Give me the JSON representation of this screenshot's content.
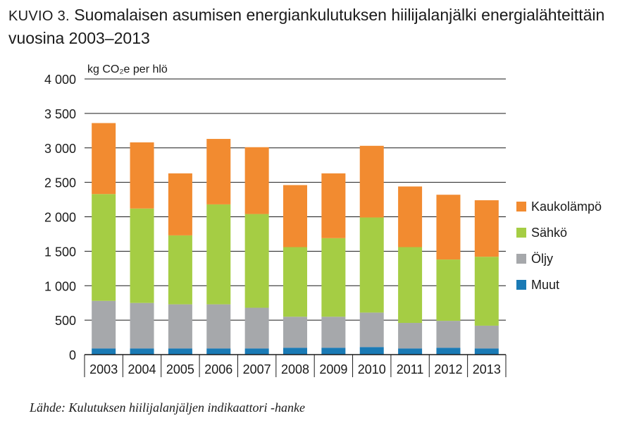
{
  "title": {
    "prefix": "KUVIO 3.",
    "text": "Suomalaisen asumisen energiankulutuksen hiilijalanjälki energialähteittäin vuosina 2003–2013"
  },
  "source": "Lähde: Kulutuksen hiilijalanjäljen indikaattori -hanke",
  "chart_data": {
    "type": "bar",
    "stacked": true,
    "ylabel": "kg CO₂e per hlö",
    "ylim": [
      0,
      4000
    ],
    "yticks": [
      0,
      500,
      1000,
      1500,
      2000,
      2500,
      3000,
      3500,
      4000
    ],
    "ytick_labels": [
      "0",
      "500",
      "1 000",
      "1 500",
      "2 000",
      "2 500",
      "3 000",
      "3 500",
      "4 000"
    ],
    "grid": true,
    "legend_position": "right",
    "categories": [
      "2003",
      "2004",
      "2005",
      "2006",
      "2007",
      "2008",
      "2009",
      "2010",
      "2011",
      "2012",
      "2013"
    ],
    "series": [
      {
        "name": "Muut",
        "color": "#1a7ab5",
        "values": [
          90,
          90,
          90,
          90,
          90,
          100,
          100,
          110,
          90,
          100,
          90
        ]
      },
      {
        "name": "Öljy",
        "color": "#a6a8ab",
        "values": [
          690,
          660,
          640,
          640,
          590,
          450,
          450,
          500,
          370,
          390,
          330
        ]
      },
      {
        "name": "Sähkö",
        "color": "#a5cd44",
        "values": [
          1550,
          1370,
          1000,
          1450,
          1360,
          1010,
          1140,
          1380,
          1100,
          890,
          1000
        ]
      },
      {
        "name": "Kaukolämpö",
        "color": "#f28b30",
        "values": [
          1030,
          960,
          900,
          950,
          970,
          900,
          940,
          1040,
          880,
          940,
          820
        ]
      }
    ]
  }
}
